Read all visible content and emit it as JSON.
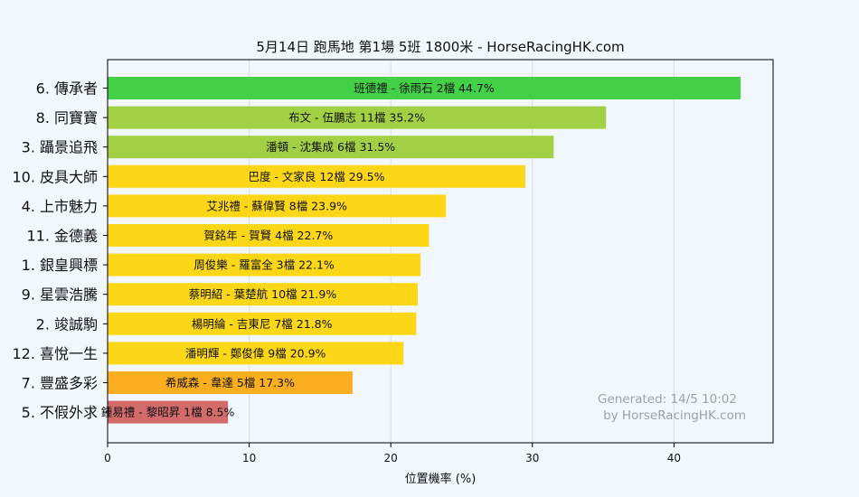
{
  "chart_data": {
    "type": "bar",
    "orientation": "horizontal",
    "title": "5月14日  跑馬地  第1場  5班  1800米 - HorseRacingHK.com",
    "xlabel": "位置機率 (%)",
    "ylabel": "",
    "xlim": [
      0,
      47
    ],
    "x_ticks": [
      0,
      10,
      20,
      30,
      40
    ],
    "x_tick_labels": [
      "0",
      "10",
      "20",
      "30",
      "40"
    ],
    "grid": "vertical",
    "legend": "none",
    "categories": [
      "6. 傳承者",
      "8. 同寶寶",
      "3. 躡景追飛",
      "10. 皮具大師",
      "4. 上市魅力",
      "11. 金德義",
      "1. 銀皇興標",
      "9. 星雲浩騰",
      "2. 竣誠駒",
      "12. 喜悅一生",
      "7. 豐盛多彩",
      "5. 不假外求"
    ],
    "values": [
      44.7,
      35.2,
      31.5,
      29.5,
      23.9,
      22.7,
      22.1,
      21.9,
      21.8,
      20.9,
      17.3,
      8.5
    ],
    "bar_labels": [
      "班德禮 - 徐雨石 2檔  44.7%",
      "布文 - 伍鵬志 11檔  35.2%",
      "潘頓 - 沈集成 6檔  31.5%",
      "巴度 - 文家良 12檔  29.5%",
      "艾兆禮 - 蘇偉賢 8檔  23.9%",
      "賀銘年 - 賀賢 4檔  22.7%",
      "周俊樂 - 羅富全 3檔  22.1%",
      "蔡明紹 - 葉楚航 10檔  21.9%",
      "楊明綸 - 吉東尼 7檔  21.8%",
      "潘明輝 - 鄭俊偉 9檔  20.9%",
      "希威森 - 韋達 5檔  17.3%",
      "鍾易禮 - 黎昭昇 1檔  8.5%"
    ],
    "colors": [
      "#43d047",
      "#a2d044",
      "#a2d044",
      "#fbd718",
      "#fbd718",
      "#fbd718",
      "#fbd718",
      "#fbd718",
      "#fbd718",
      "#fbd718",
      "#fbae20",
      "#d46b6b"
    ],
    "annotation": [
      "Generated: 14/5 10:02",
      "by HorseRacingHK.com"
    ]
  }
}
